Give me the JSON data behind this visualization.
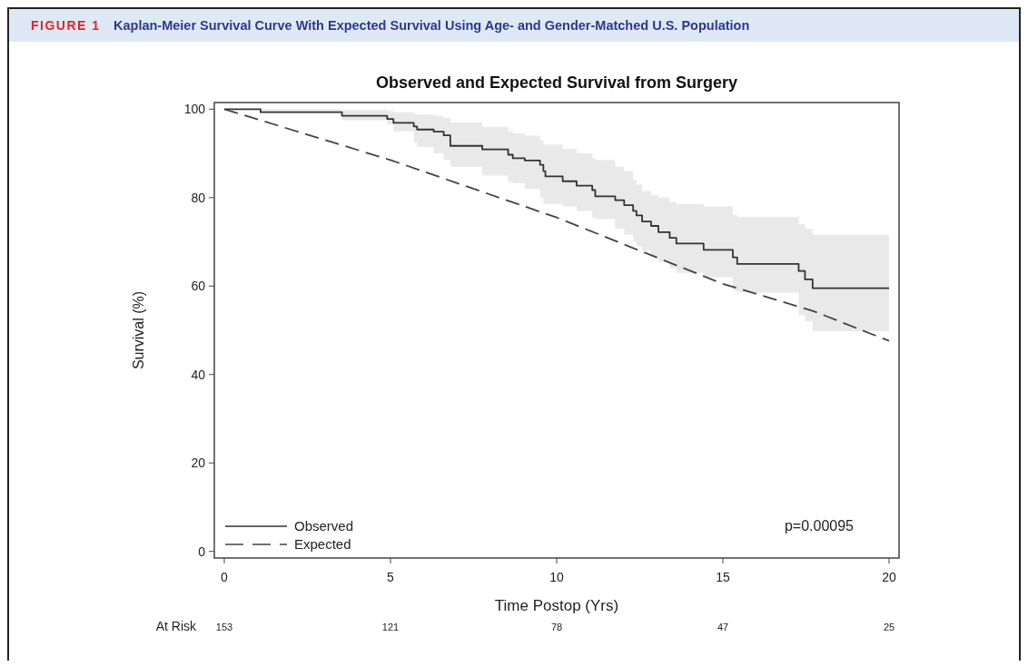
{
  "chart_data": {
    "type": "step",
    "title": "Observed and Expected Survival from Surgery",
    "xlabel": "Time Postop (Yrs)",
    "ylabel": "Survival (%)",
    "xlim": [
      -0.3,
      20.3
    ],
    "xticks": [
      0,
      5,
      10,
      15,
      20
    ],
    "ylim": [
      -1.5,
      101.5
    ],
    "yticks": [
      0,
      20,
      40,
      60,
      80,
      100
    ],
    "grid": false,
    "legend": "bottom left",
    "series": [
      {
        "name": "Observed",
        "type": "step",
        "color": "#333333",
        "line_style": "solid",
        "x": [
          0,
          1.09,
          3.54,
          4.9,
          5.09,
          5.7,
          5.8,
          6.3,
          6.6,
          6.8,
          7.76,
          8.54,
          8.68,
          9.04,
          9.5,
          9.6,
          9.66,
          10.18,
          10.6,
          11.07,
          11.16,
          11.76,
          12.03,
          12.3,
          12.4,
          12.57,
          12.84,
          13.06,
          13.4,
          13.6,
          14.42,
          15.3,
          15.43,
          17.28,
          17.47,
          17.7,
          20
        ],
        "values": [
          100,
          99.3,
          98.5,
          97.8,
          96.9,
          96.1,
          95.4,
          94.9,
          94.1,
          91.7,
          90.9,
          89.7,
          88.9,
          88.4,
          87.4,
          86,
          84.8,
          83.7,
          82.7,
          81.7,
          80.3,
          79.4,
          78.3,
          77,
          76,
          74.6,
          73.6,
          72.2,
          70.9,
          69.6,
          68.2,
          66.5,
          65,
          63.4,
          61.5,
          59.5,
          59.5
        ],
        "lower": [
          100,
          99.5,
          97.5,
          96.5,
          95,
          92.5,
          91.5,
          90,
          88.5,
          87,
          85,
          83.5,
          83.3,
          82,
          80,
          78.6,
          78.6,
          78,
          77,
          75.5,
          75.2,
          73,
          71.6,
          70,
          69,
          68,
          66.5,
          65.5,
          64,
          63,
          62,
          58.9,
          58.5,
          53.4,
          52,
          49.8,
          49.8
        ],
        "upper": [
          100,
          100,
          99.8,
          99.6,
          99.3,
          99,
          98.8,
          98.5,
          98,
          97,
          96,
          95,
          94.5,
          94,
          93,
          92,
          92,
          91,
          90,
          89,
          88.5,
          87,
          86,
          84,
          83,
          81.5,
          80.5,
          80,
          79,
          78.5,
          78,
          76,
          75.6,
          74,
          73,
          71.6,
          71.6
        ]
      },
      {
        "name": "Expected",
        "type": "line",
        "color": "#444444",
        "line_style": "dashed",
        "x": [
          0,
          5,
          10,
          15,
          17.7,
          20
        ],
        "values": [
          100,
          88.5,
          75.5,
          60.5,
          54.4,
          47.6
        ]
      }
    ],
    "annotations": [
      "FIGURE 1",
      "Kaplan-Meier Survival Curve With Expected Survival Using Age- and Gender-Matched U.S. Population",
      "p=0.00095",
      "At Risk",
      "153",
      "121",
      "78",
      "47",
      "25"
    ]
  }
}
